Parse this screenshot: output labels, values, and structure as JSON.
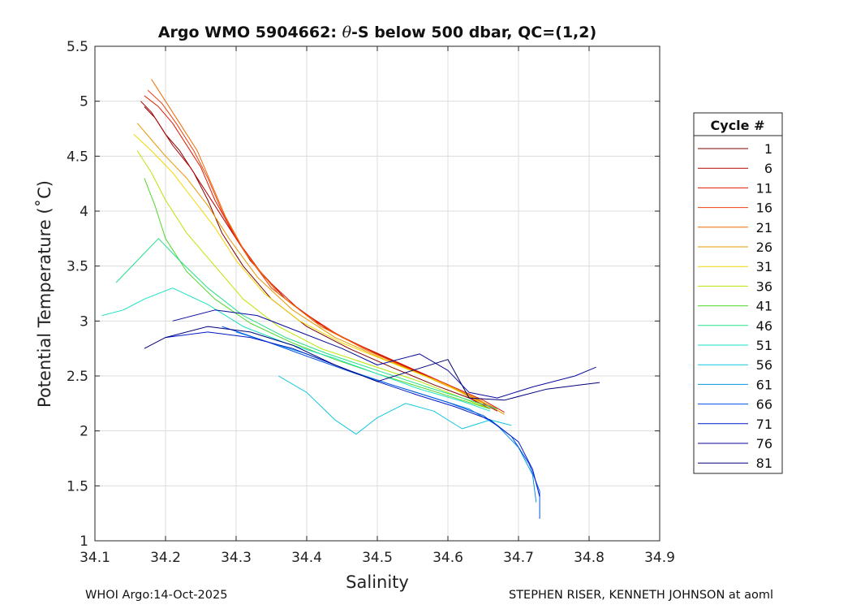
{
  "chart_data": {
    "type": "line",
    "title": "Argo WMO 5904662: θ-S below 500 dbar,  QC=(1,2)",
    "title_parts": {
      "prefix": "Argo WMO 5904662: ",
      "theta": "θ",
      "suffix": "-S below 500 dbar,  QC=(1,2)"
    },
    "xlabel": "Salinity",
    "ylabel": "Potential Temperature (˚C)",
    "xlim": [
      34.1,
      34.9
    ],
    "ylim": [
      1,
      5.5
    ],
    "xticks": [
      "34.1",
      "34.2",
      "34.3",
      "34.4",
      "34.5",
      "34.6",
      "34.7",
      "34.8",
      "34.9"
    ],
    "yticks": [
      "1",
      "1.5",
      "2",
      "2.5",
      "3",
      "3.5",
      "4",
      "4.5",
      "5",
      "5.5"
    ],
    "grid": true,
    "legend": {
      "title": "Cycle #",
      "placement": "right-outside",
      "entries": [
        {
          "label": "1",
          "color": "#800000"
        },
        {
          "label": "6",
          "color": "#b30000"
        },
        {
          "label": "11",
          "color": "#e31a00"
        },
        {
          "label": "16",
          "color": "#f04010"
        },
        {
          "label": "21",
          "color": "#f06a00"
        },
        {
          "label": "26",
          "color": "#e69a00"
        },
        {
          "label": "31",
          "color": "#f2d800"
        },
        {
          "label": "36",
          "color": "#b8e600"
        },
        {
          "label": "41",
          "color": "#4ed82a"
        },
        {
          "label": "46",
          "color": "#22e08a"
        },
        {
          "label": "51",
          "color": "#1ae0c2"
        },
        {
          "label": "56",
          "color": "#10c8e0"
        },
        {
          "label": "61",
          "color": "#0a96e6"
        },
        {
          "label": "66",
          "color": "#0050e8"
        },
        {
          "label": "71",
          "color": "#0018c8"
        },
        {
          "label": "76",
          "color": "#0a0a9c"
        },
        {
          "label": "81",
          "color": "#00007a"
        }
      ]
    },
    "series": [
      {
        "name": "cycle 1",
        "color": "#800000",
        "s": [
          34.17,
          34.185,
          34.2,
          34.22,
          34.24,
          34.26,
          34.28,
          34.31,
          34.35,
          34.4,
          34.46,
          34.52,
          34.58,
          34.63,
          34.66
        ],
        "t": [
          4.95,
          4.85,
          4.7,
          4.55,
          4.35,
          4.1,
          3.8,
          3.5,
          3.2,
          2.95,
          2.75,
          2.58,
          2.42,
          2.3,
          2.2
        ]
      },
      {
        "name": "cycle 6",
        "color": "#b30000",
        "s": [
          34.165,
          34.18,
          34.195,
          34.21,
          34.235,
          34.26,
          34.29,
          34.32,
          34.37,
          34.43,
          34.5,
          34.57,
          34.63,
          34.67
        ],
        "t": [
          5.0,
          4.9,
          4.75,
          4.6,
          4.4,
          4.15,
          3.85,
          3.55,
          3.2,
          2.92,
          2.7,
          2.5,
          2.32,
          2.18
        ]
      },
      {
        "name": "cycle 11",
        "color": "#e31a00",
        "s": [
          34.17,
          34.19,
          34.21,
          34.23,
          34.25,
          34.27,
          34.3,
          34.34,
          34.39,
          34.45,
          34.52,
          34.59,
          34.65,
          34.68
        ],
        "t": [
          5.05,
          4.95,
          4.8,
          4.6,
          4.4,
          4.1,
          3.75,
          3.4,
          3.1,
          2.85,
          2.65,
          2.45,
          2.28,
          2.17
        ]
      },
      {
        "name": "cycle 16",
        "color": "#f04010",
        "s": [
          34.175,
          34.195,
          34.215,
          34.24,
          34.26,
          34.28,
          34.31,
          34.35,
          34.41,
          34.48,
          34.55,
          34.61,
          34.66
        ],
        "t": [
          5.1,
          4.98,
          4.8,
          4.55,
          4.3,
          4.0,
          3.65,
          3.3,
          3.0,
          2.75,
          2.55,
          2.38,
          2.2
        ]
      },
      {
        "name": "cycle 21",
        "color": "#f06a00",
        "s": [
          34.18,
          34.2,
          34.22,
          34.245,
          34.265,
          34.285,
          34.315,
          34.36,
          34.42,
          34.49,
          34.56,
          34.62,
          34.67
        ],
        "t": [
          5.2,
          5.0,
          4.8,
          4.55,
          4.25,
          3.95,
          3.6,
          3.25,
          2.95,
          2.72,
          2.52,
          2.35,
          2.2
        ]
      },
      {
        "name": "cycle 26",
        "color": "#e69a00",
        "s": [
          34.16,
          34.18,
          34.2,
          34.23,
          34.26,
          34.29,
          34.33,
          34.38,
          34.44,
          34.51,
          34.58,
          34.64,
          34.68
        ],
        "t": [
          4.8,
          4.65,
          4.5,
          4.3,
          4.05,
          3.75,
          3.4,
          3.1,
          2.85,
          2.65,
          2.47,
          2.3,
          2.15
        ]
      },
      {
        "name": "cycle 31",
        "color": "#f2d800",
        "s": [
          34.155,
          34.18,
          34.21,
          34.24,
          34.27,
          34.3,
          34.34,
          34.39,
          34.45,
          34.52,
          34.59,
          34.65
        ],
        "t": [
          4.7,
          4.55,
          4.35,
          4.1,
          3.85,
          3.55,
          3.25,
          3.0,
          2.8,
          2.62,
          2.44,
          2.25
        ]
      },
      {
        "name": "cycle 36",
        "color": "#b8e600",
        "s": [
          34.16,
          34.18,
          34.2,
          34.23,
          34.27,
          34.31,
          34.36,
          34.42,
          34.49,
          34.56,
          34.62,
          34.66
        ],
        "t": [
          4.55,
          4.35,
          4.1,
          3.8,
          3.5,
          3.2,
          2.95,
          2.75,
          2.6,
          2.45,
          2.3,
          2.2
        ]
      },
      {
        "name": "cycle 41",
        "color": "#4ed82a",
        "s": [
          34.17,
          34.185,
          34.2,
          34.23,
          34.27,
          34.32,
          34.38,
          34.44,
          34.5,
          34.56,
          34.62,
          34.66
        ],
        "t": [
          4.3,
          4.05,
          3.75,
          3.45,
          3.2,
          2.98,
          2.8,
          2.65,
          2.52,
          2.4,
          2.28,
          2.2
        ]
      },
      {
        "name": "cycle 46",
        "color": "#22e08a",
        "s": [
          34.13,
          34.16,
          34.19,
          34.22,
          34.26,
          34.31,
          34.37,
          34.43,
          34.5,
          34.57,
          34.63,
          34.67
        ],
        "t": [
          3.35,
          3.55,
          3.75,
          3.55,
          3.3,
          3.05,
          2.85,
          2.7,
          2.55,
          2.4,
          2.28,
          2.2
        ]
      },
      {
        "name": "cycle 51",
        "color": "#1ae0c2",
        "s": [
          34.11,
          34.14,
          34.17,
          34.21,
          34.26,
          34.31,
          34.37,
          34.44,
          34.5,
          34.56,
          34.62,
          34.66
        ],
        "t": [
          3.05,
          3.1,
          3.2,
          3.3,
          3.15,
          2.95,
          2.8,
          2.66,
          2.52,
          2.38,
          2.27,
          2.18
        ]
      },
      {
        "name": "cycle 56",
        "color": "#10c8e0",
        "s": [
          34.36,
          34.4,
          34.44,
          34.47,
          34.5,
          34.54,
          34.58,
          34.62,
          34.66,
          34.69
        ],
        "t": [
          2.5,
          2.35,
          2.1,
          1.97,
          2.12,
          2.25,
          2.18,
          2.02,
          2.1,
          2.05
        ]
      },
      {
        "name": "cycle 61",
        "color": "#0a96e6",
        "s": [
          34.3,
          34.35,
          34.4,
          34.46,
          34.52,
          34.58,
          34.63,
          34.67,
          34.7,
          34.72,
          34.725
        ],
        "t": [
          2.9,
          2.8,
          2.7,
          2.55,
          2.42,
          2.3,
          2.2,
          2.05,
          1.85,
          1.6,
          1.35
        ]
      },
      {
        "name": "cycle 66",
        "color": "#0050e8",
        "s": [
          34.28,
          34.34,
          34.4,
          34.47,
          34.54,
          34.6,
          34.65,
          34.69,
          34.715,
          34.73,
          34.73
        ],
        "t": [
          2.95,
          2.82,
          2.68,
          2.52,
          2.38,
          2.26,
          2.14,
          1.95,
          1.7,
          1.45,
          1.2
        ]
      },
      {
        "name": "cycle 71",
        "color": "#0018c8",
        "s": [
          34.2,
          34.26,
          34.32,
          34.38,
          34.44,
          34.5,
          34.56,
          34.61,
          34.66,
          34.7,
          34.72,
          34.73
        ],
        "t": [
          2.85,
          2.9,
          2.85,
          2.75,
          2.6,
          2.45,
          2.32,
          2.22,
          2.1,
          1.9,
          1.65,
          1.4
        ]
      },
      {
        "name": "cycle 76",
        "color": "#0a0a9c",
        "s": [
          34.21,
          34.27,
          34.33,
          34.39,
          34.45,
          34.5,
          34.56,
          34.6,
          34.63,
          34.67,
          34.72,
          34.78,
          34.81
        ],
        "t": [
          3.0,
          3.1,
          3.05,
          2.9,
          2.75,
          2.6,
          2.7,
          2.55,
          2.35,
          2.3,
          2.4,
          2.5,
          2.58
        ]
      },
      {
        "name": "cycle 81",
        "color": "#00007a",
        "s": [
          34.17,
          34.2,
          34.26,
          34.32,
          34.38,
          34.44,
          34.5,
          34.55,
          34.6,
          34.63,
          34.68,
          34.74,
          34.79,
          34.815
        ],
        "t": [
          2.75,
          2.85,
          2.95,
          2.9,
          2.78,
          2.6,
          2.45,
          2.55,
          2.65,
          2.3,
          2.28,
          2.38,
          2.42,
          2.44
        ]
      }
    ]
  },
  "footer": {
    "left": "WHOI Argo:14-Oct-2025",
    "right": "STEPHEN RISER, KENNETH JOHNSON at aoml"
  }
}
